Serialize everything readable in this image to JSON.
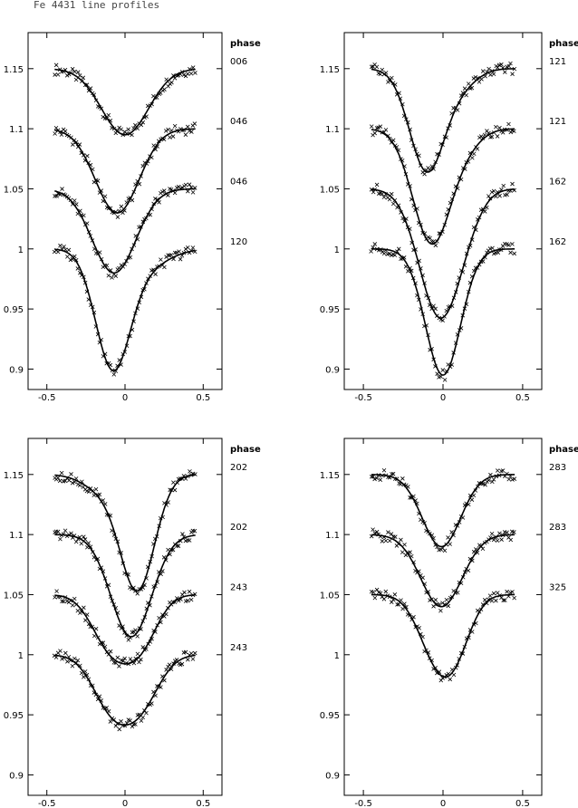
{
  "figure": {
    "title": "Fe 4431 line profiles",
    "phase_header": "phase"
  },
  "chart_data": [
    {
      "type": "line",
      "xlim": [
        -0.62,
        0.62
      ],
      "ylim": [
        0.883,
        1.18
      ],
      "xticks": [
        -0.5,
        0,
        0.5
      ],
      "xtick_labels": [
        "-0.5",
        "0",
        "0.5"
      ],
      "yticks": [
        0.9,
        0.95,
        1,
        1.05,
        1.1,
        1.15
      ],
      "ytick_labels": [
        "0.9",
        "0.95",
        "1",
        "1.05",
        "1.1",
        "1.15"
      ],
      "series": [
        {
          "name": "006",
          "offset": 1.15,
          "depth": 0.055,
          "center": 0.0,
          "sigma": 0.15,
          "center2": 0.0,
          "depth2": 0.0,
          "sigma2": 0.1
        },
        {
          "name": "046",
          "offset": 1.1,
          "depth": 0.07,
          "center": -0.05,
          "sigma": 0.14,
          "center2": 0.0,
          "depth2": 0.0,
          "sigma2": 0.1
        },
        {
          "name": "046",
          "offset": 1.05,
          "depth": 0.07,
          "center": -0.07,
          "sigma": 0.14,
          "center2": 0.0,
          "depth2": 0.0,
          "sigma2": 0.1
        },
        {
          "name": "120",
          "offset": 1.0,
          "depth": 0.095,
          "center": -0.08,
          "sigma": 0.11,
          "center2": 0.12,
          "depth2": 0.015,
          "sigma2": 0.15
        }
      ]
    },
    {
      "type": "line",
      "xlim": [
        -0.62,
        0.62
      ],
      "ylim": [
        0.883,
        1.18
      ],
      "xticks": [
        -0.5,
        0,
        0.5
      ],
      "xtick_labels": [
        "-0.5",
        "0",
        "0.5"
      ],
      "yticks": [
        0.9,
        0.95,
        1,
        1.05,
        1.1,
        1.15
      ],
      "ytick_labels": [
        "0.9",
        "0.95",
        "1",
        "1.05",
        "1.1",
        "1.15"
      ],
      "series": [
        {
          "name": "121",
          "offset": 1.15,
          "depth": 0.085,
          "center": -0.1,
          "sigma": 0.11,
          "center2": 0.12,
          "depth2": 0.012,
          "sigma2": 0.1
        },
        {
          "name": "121",
          "offset": 1.1,
          "depth": 0.095,
          "center": -0.07,
          "sigma": 0.12,
          "center2": 0.15,
          "depth2": 0.01,
          "sigma2": 0.1
        },
        {
          "name": "162",
          "offset": 1.05,
          "depth": 0.105,
          "center": -0.02,
          "sigma": 0.13,
          "center2": 0.15,
          "depth2": 0.01,
          "sigma2": 0.1
        },
        {
          "name": "162",
          "offset": 1.0,
          "depth": 0.105,
          "center": 0.0,
          "sigma": 0.11,
          "center2": 0.0,
          "depth2": 0.0,
          "sigma2": 0.1
        }
      ]
    },
    {
      "type": "line",
      "xlim": [
        -0.62,
        0.62
      ],
      "ylim": [
        0.883,
        1.18
      ],
      "xticks": [
        -0.5,
        0,
        0.5
      ],
      "xtick_labels": [
        "-0.5",
        "0",
        "0.5"
      ],
      "yticks": [
        0.9,
        0.95,
        1,
        1.05,
        1.1,
        1.15
      ],
      "ytick_labels": [
        "0.9",
        "0.95",
        "1",
        "1.05",
        "1.1",
        "1.15"
      ],
      "series": [
        {
          "name": "202",
          "offset": 1.15,
          "depth": 0.095,
          "center": 0.08,
          "sigma": 0.11,
          "center2": -0.15,
          "depth2": 0.012,
          "sigma2": 0.12
        },
        {
          "name": "202",
          "offset": 1.1,
          "depth": 0.085,
          "center": 0.04,
          "sigma": 0.13,
          "center2": 0.0,
          "depth2": 0.0,
          "sigma2": 0.1
        },
        {
          "name": "243",
          "offset": 1.05,
          "depth": 0.043,
          "center": -0.09,
          "sigma": 0.12,
          "center2": 0.1,
          "depth2": 0.038,
          "sigma2": 0.11
        },
        {
          "name": "243",
          "offset": 1.0,
          "depth": 0.041,
          "center": -0.09,
          "sigma": 0.12,
          "center2": 0.1,
          "depth2": 0.039,
          "sigma2": 0.12
        }
      ]
    },
    {
      "type": "line",
      "xlim": [
        -0.62,
        0.62
      ],
      "ylim": [
        0.883,
        1.18
      ],
      "xticks": [
        -0.5,
        0,
        0.5
      ],
      "xtick_labels": [
        "-0.5",
        "0",
        "0.5"
      ],
      "yticks": [
        0.9,
        0.95,
        1,
        1.05,
        1.1,
        1.15
      ],
      "ytick_labels": [
        "0.9",
        "0.95",
        "1",
        "1.05",
        "1.1",
        "1.15"
      ],
      "series": [
        {
          "name": "283",
          "offset": 1.15,
          "depth": 0.06,
          "center": -0.01,
          "sigma": 0.12,
          "center2": 0.0,
          "depth2": 0.0,
          "sigma2": 0.1
        },
        {
          "name": "283",
          "offset": 1.1,
          "depth": 0.06,
          "center": -0.01,
          "sigma": 0.13,
          "center2": 0.0,
          "depth2": 0.0,
          "sigma2": 0.1
        },
        {
          "name": "325",
          "offset": 1.05,
          "depth": 0.045,
          "center": -0.05,
          "sigma": 0.11,
          "center2": 0.08,
          "depth2": 0.038,
          "sigma2": 0.1
        }
      ]
    }
  ]
}
